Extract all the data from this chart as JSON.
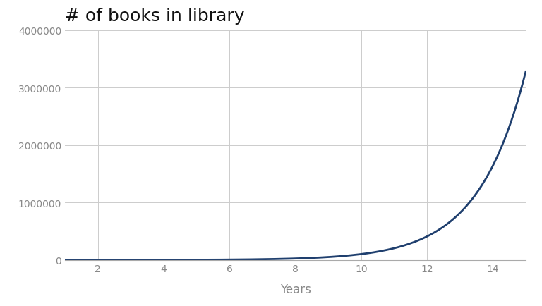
{
  "title": "# of books in library",
  "xlabel": "Years",
  "x_start": 1,
  "x_end": 15,
  "base": 2,
  "multiplier": 100,
  "xlim": [
    1,
    15
  ],
  "ylim": [
    0,
    4000000
  ],
  "yticks": [
    0,
    1000000,
    2000000,
    3000000,
    4000000
  ],
  "xticks": [
    2,
    4,
    6,
    8,
    10,
    12,
    14
  ],
  "line_color": "#1f3f6e",
  "line_width": 2.0,
  "background_color": "#ffffff",
  "grid_color": "#cccccc",
  "title_fontsize": 18,
  "label_fontsize": 12,
  "tick_fontsize": 10,
  "title_color": "#111111",
  "tick_color": "#888888"
}
